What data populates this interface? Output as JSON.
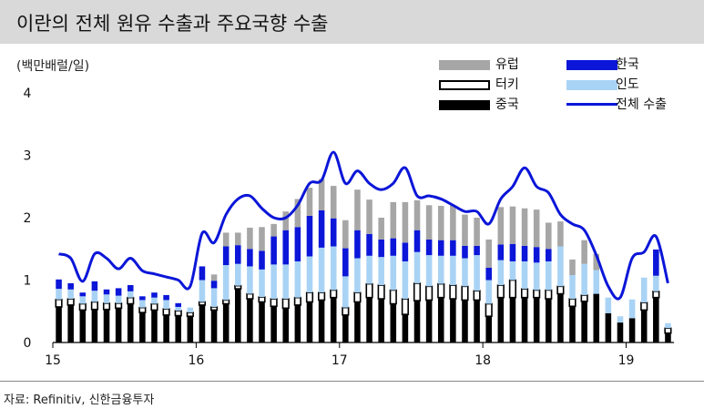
{
  "title": "이란의 전체 원유 수출과 주요국향 수출",
  "unit": "(백만배럴/일)",
  "source": "자료: Refinitiv, 신한금융투자",
  "legend": {
    "europe": "유럽",
    "korea": "한국",
    "turkey": "터키",
    "india": "인도",
    "china": "중국",
    "total": "전체 수출"
  },
  "colors": {
    "europe": "#a6a6a6",
    "korea": "#0b16d8",
    "turkey": "#ffffff",
    "india": "#a9d3f5",
    "china": "#000000",
    "total": "#0b16d8"
  },
  "chart_data": {
    "type": "bar",
    "stacked": true,
    "ylim": [
      0,
      4
    ],
    "yticks": [
      "0",
      "1",
      "2",
      "3",
      "4"
    ],
    "xticks": [
      {
        "label": "15",
        "index": 0
      },
      {
        "label": "16",
        "index": 12
      },
      {
        "label": "17",
        "index": 24
      },
      {
        "label": "18",
        "index": 36
      },
      {
        "label": "19",
        "index": 48
      }
    ],
    "series": [
      {
        "name": "중국",
        "key": "china",
        "values": [
          0.57,
          0.6,
          0.52,
          0.53,
          0.53,
          0.55,
          0.62,
          0.48,
          0.52,
          0.44,
          0.43,
          0.42,
          0.6,
          0.52,
          0.62,
          0.86,
          0.7,
          0.65,
          0.58,
          0.55,
          0.6,
          0.65,
          0.68,
          0.72,
          0.44,
          0.65,
          0.72,
          0.7,
          0.62,
          0.45,
          0.67,
          0.68,
          0.72,
          0.7,
          0.68,
          0.68,
          0.42,
          0.72,
          0.72,
          0.72,
          0.72,
          0.7,
          0.78,
          0.58,
          0.66,
          0.78,
          0.47,
          0.32,
          0.39,
          0.52,
          0.72,
          0.15
        ]
      },
      {
        "name": "터키",
        "key": "turkey",
        "values": [
          0.12,
          0.1,
          0.1,
          0.12,
          0.1,
          0.08,
          0.1,
          0.08,
          0.1,
          0.1,
          0.08,
          0.06,
          0.05,
          0.05,
          0.06,
          0.05,
          0.08,
          0.08,
          0.12,
          0.15,
          0.12,
          0.15,
          0.12,
          0.12,
          0.12,
          0.15,
          0.22,
          0.22,
          0.22,
          0.25,
          0.28,
          0.22,
          0.22,
          0.22,
          0.22,
          0.15,
          0.2,
          0.2,
          0.28,
          0.14,
          0.12,
          0.14,
          0.12,
          0.12,
          0.1,
          0.0,
          0.0,
          0.0,
          0.0,
          0.12,
          0.1,
          0.08
        ]
      },
      {
        "name": "인도",
        "key": "india",
        "values": [
          0.17,
          0.15,
          0.12,
          0.18,
          0.14,
          0.12,
          0.1,
          0.12,
          0.1,
          0.14,
          0.06,
          0.08,
          0.35,
          0.3,
          0.56,
          0.35,
          0.44,
          0.44,
          0.55,
          0.55,
          0.58,
          0.58,
          0.72,
          0.7,
          0.5,
          0.55,
          0.45,
          0.45,
          0.55,
          0.6,
          0.5,
          0.5,
          0.45,
          0.47,
          0.45,
          0.57,
          0.38,
          0.4,
          0.3,
          0.44,
          0.44,
          0.46,
          0.64,
          0.38,
          0.5,
          0.38,
          0.25,
          0.1,
          0.3,
          0.4,
          0.25,
          0.08
        ]
      },
      {
        "name": "한국",
        "key": "korea",
        "values": [
          0.15,
          0.1,
          0.06,
          0.15,
          0.08,
          0.12,
          0.1,
          0.06,
          0.08,
          0.08,
          0.06,
          0.0,
          0.22,
          0.12,
          0.3,
          0.3,
          0.28,
          0.3,
          0.45,
          0.55,
          0.55,
          0.65,
          0.6,
          0.45,
          0.45,
          0.45,
          0.35,
          0.28,
          0.28,
          0.3,
          0.35,
          0.25,
          0.25,
          0.25,
          0.2,
          0.15,
          0.2,
          0.25,
          0.28,
          0.25,
          0.25,
          0.2,
          0.0,
          0.0,
          0.0,
          0.0,
          0.0,
          0.0,
          0.0,
          0.0,
          0.42,
          0.0
        ]
      },
      {
        "name": "유럽",
        "key": "europe",
        "values": [
          0.0,
          0.0,
          0.0,
          0.0,
          0.0,
          0.0,
          0.0,
          0.0,
          0.0,
          0.0,
          0.0,
          0.0,
          0.0,
          0.1,
          0.22,
          0.2,
          0.34,
          0.38,
          0.2,
          0.3,
          0.45,
          0.45,
          0.5,
          0.52,
          0.45,
          0.65,
          0.55,
          0.35,
          0.58,
          0.65,
          0.48,
          0.55,
          0.55,
          0.55,
          0.5,
          0.45,
          0.45,
          0.6,
          0.6,
          0.6,
          0.6,
          0.42,
          0.4,
          0.25,
          0.38,
          0.26,
          0.0,
          0.0,
          0.0,
          0.0,
          0.0,
          0.0
        ]
      }
    ],
    "total": {
      "name": "전체 수출",
      "key": "total",
      "values": [
        1.42,
        1.35,
        0.98,
        1.42,
        1.35,
        1.18,
        1.35,
        1.15,
        1.1,
        1.05,
        1.0,
        0.9,
        1.75,
        1.6,
        2.05,
        2.3,
        2.35,
        2.15,
        2.0,
        2.0,
        2.2,
        2.55,
        2.6,
        3.05,
        2.55,
        2.75,
        2.55,
        2.45,
        2.55,
        2.8,
        2.35,
        2.35,
        2.3,
        2.2,
        2.1,
        2.1,
        1.9,
        2.3,
        2.5,
        2.8,
        2.5,
        2.4,
        2.05,
        1.9,
        1.8,
        1.4,
        0.9,
        0.72,
        1.35,
        1.45,
        1.7,
        0.95
      ]
    }
  }
}
